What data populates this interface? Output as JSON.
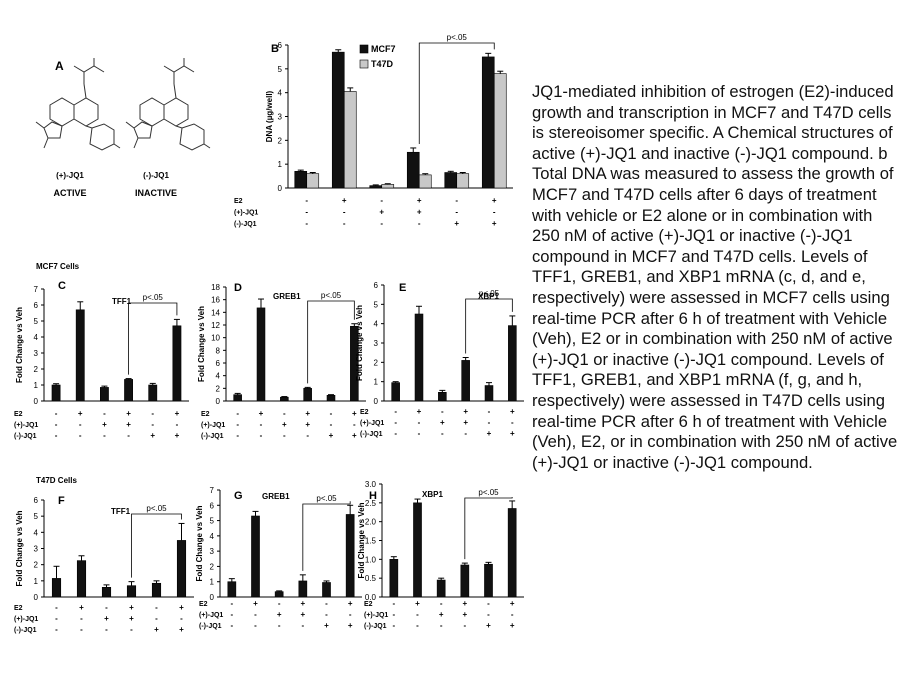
{
  "figure": {
    "caption": "JQ1-mediated inhibition of estrogen (E2)-induced growth and transcription in MCF7 and T47D cells is stereoisomer specific. A Chemical structures of active (+)-JQ1 and inactive (-)-JQ1 compound. b Total DNA was measured to assess the growth of MCF7 and T47D cells after 6 days of treatment with vehicle or E2 alone or in combination with 250 nM of active (+)-JQ1 or inactive (-)-JQ1 compound in MCF7 and T47D cells. Levels of TFF1, GREB1, and XBP1 mRNA (c, d, and e, respectively) were assessed in MCF7 cells using real-time PCR after 6 h of treatment with Vehicle (Veh), E2 or in combination with 250 nM of active (+)-JQ1 or inactive (-)-JQ1 compound. Levels of TFF1, GREB1, and XBP1 mRNA (f, g, and h, respectively) were assessed in T47D cells using real-time PCR after 6 h of treatment with Vehicle (Veh), E2, or in combination with 250 nM of active (+)-JQ1 or inactive (-)-JQ1 compound.",
    "panel_a": {
      "letter": "A",
      "active_name": "(+)-JQ1",
      "active_label": "ACTIVE",
      "inactive_name": "(-)-JQ1",
      "inactive_label": "INACTIVE"
    },
    "section_mcf7": "MCF7 Cells",
    "section_t47d": "T47D Cells",
    "treatment_rows": [
      {
        "label": "E2",
        "signs": [
          "-",
          "+",
          "-",
          "+",
          "-",
          "+"
        ]
      },
      {
        "label": "(+)-JQ1",
        "signs": [
          "-",
          "-",
          "+",
          "+",
          "-",
          "-"
        ]
      },
      {
        "label": "(-)-JQ1",
        "signs": [
          "-",
          "-",
          "-",
          "-",
          "+",
          "+"
        ]
      }
    ],
    "pvalue_label": "p<.05",
    "colors": {
      "black": "#111111",
      "grey": "#c8c8c8"
    }
  },
  "chart_data": [
    {
      "panel": "B",
      "type": "bar",
      "ylabel": "DNA (µg/well)",
      "ylim": [
        0,
        6
      ],
      "yticks": [
        0,
        1,
        2,
        3,
        4,
        5,
        6
      ],
      "series": [
        {
          "name": "MCF7",
          "values": [
            0.7,
            5.7,
            0.1,
            1.5,
            0.65,
            5.5
          ],
          "errors": [
            0.05,
            0.1,
            0.03,
            0.18,
            0.05,
            0.15
          ]
        },
        {
          "name": "T47D",
          "values": [
            0.6,
            4.05,
            0.15,
            0.55,
            0.6,
            4.8
          ],
          "errors": [
            0.05,
            0.15,
            0.03,
            0.05,
            0.05,
            0.1
          ]
        }
      ],
      "legend": "top-left",
      "comparison": [
        3,
        5
      ]
    },
    {
      "panel": "C",
      "title": "TFF1",
      "type": "bar",
      "ylabel": "Fold Change vs Veh",
      "ylim": [
        0,
        7
      ],
      "yticks": [
        0,
        1,
        2,
        3,
        4,
        5,
        6,
        7
      ],
      "values": [
        1.0,
        5.7,
        0.85,
        1.35,
        1.0,
        4.7
      ],
      "errors": [
        0.08,
        0.5,
        0.08,
        0.05,
        0.1,
        0.4
      ],
      "comparison": [
        3,
        5
      ]
    },
    {
      "panel": "D",
      "title": "GREB1",
      "type": "bar",
      "ylabel": "Fold Change vs Veh",
      "ylim": [
        0,
        18
      ],
      "yticks": [
        0,
        2,
        4,
        6,
        8,
        10,
        12,
        14,
        16,
        18
      ],
      "values": [
        1.0,
        14.7,
        0.6,
        2.0,
        0.9,
        11.8
      ],
      "errors": [
        0.2,
        1.4,
        0.1,
        0.15,
        0.1,
        0.4
      ],
      "comparison": [
        3,
        5
      ]
    },
    {
      "panel": "E",
      "title": "XBP1",
      "type": "bar",
      "ylabel": "Fold Change vs Veh",
      "ylim": [
        0,
        6
      ],
      "yticks": [
        0,
        1,
        2,
        3,
        4,
        5,
        6
      ],
      "values": [
        0.95,
        4.5,
        0.45,
        2.1,
        0.8,
        3.9
      ],
      "errors": [
        0.05,
        0.4,
        0.1,
        0.15,
        0.15,
        0.5
      ],
      "comparison": [
        3,
        5
      ]
    },
    {
      "panel": "F",
      "title": "TFF1",
      "type": "bar",
      "ylabel": "Fold Change vs Veh",
      "ylim": [
        0,
        6
      ],
      "yticks": [
        0,
        1,
        2,
        3,
        4,
        5,
        6
      ],
      "values": [
        1.15,
        2.25,
        0.6,
        0.7,
        0.85,
        3.5
      ],
      "errors": [
        0.75,
        0.3,
        0.15,
        0.25,
        0.15,
        1.05
      ],
      "comparison": [
        3,
        5
      ]
    },
    {
      "panel": "G",
      "title": "GREB1",
      "type": "bar",
      "ylabel": "Fold Change vs Veh",
      "ylim": [
        0,
        7
      ],
      "yticks": [
        0,
        1,
        2,
        3,
        4,
        5,
        6,
        7
      ],
      "values": [
        1.0,
        5.3,
        0.35,
        1.05,
        0.95,
        5.4
      ],
      "errors": [
        0.2,
        0.3,
        0.05,
        0.4,
        0.1,
        0.6
      ],
      "comparison": [
        3,
        5
      ]
    },
    {
      "panel": "H",
      "title": "XBP1",
      "type": "bar",
      "ylabel": "Fold Change vs Veh",
      "ylim": [
        0,
        3.0
      ],
      "yticks": [
        0,
        0.5,
        1.0,
        1.5,
        2.0,
        2.5,
        3.0
      ],
      "values": [
        1.0,
        2.5,
        0.45,
        0.85,
        0.87,
        2.35
      ],
      "errors": [
        0.07,
        0.1,
        0.05,
        0.05,
        0.05,
        0.2
      ],
      "comparison": [
        3,
        5
      ]
    }
  ]
}
